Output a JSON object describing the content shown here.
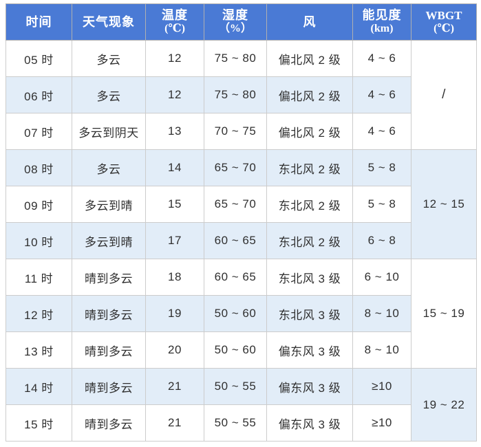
{
  "colors": {
    "header_bg": "#4a7ad5",
    "header_text": "#ffffff",
    "alt_row_bg": "#e2edf8",
    "body_text": "#303030",
    "grid_line": "#cccccc"
  },
  "table": {
    "headers": [
      {
        "zh": "时间",
        "en": ""
      },
      {
        "zh": "天气现象",
        "en": ""
      },
      {
        "zh": "温度",
        "en": "(℃)"
      },
      {
        "zh": "湿度",
        "en": "（%）"
      },
      {
        "zh": "风",
        "en": ""
      },
      {
        "zh": "能见度",
        "en": "(km)"
      },
      {
        "zh": "WBGT",
        "en": "(℃)"
      }
    ],
    "rows": [
      {
        "time": "05 时",
        "weather": "多云",
        "temp": "12",
        "humidity": "75 ~ 80",
        "wind": "偏北风 2 级",
        "visibility": "4 ~ 6"
      },
      {
        "time": "06 时",
        "weather": "多云",
        "temp": "12",
        "humidity": "75 ~ 80",
        "wind": "偏北风 2 级",
        "visibility": "4 ~ 6"
      },
      {
        "time": "07 时",
        "weather": "多云到阴天",
        "temp": "13",
        "humidity": "70 ~ 75",
        "wind": "偏北风 2 级",
        "visibility": "4 ~ 6"
      },
      {
        "time": "08 时",
        "weather": "多云",
        "temp": "14",
        "humidity": "65 ~ 70",
        "wind": "东北风 2 级",
        "visibility": "5 ~ 8"
      },
      {
        "time": "09 时",
        "weather": "多云到晴",
        "temp": "15",
        "humidity": "65 ~ 70",
        "wind": "东北风 2 级",
        "visibility": "5 ~ 8"
      },
      {
        "time": "10 时",
        "weather": "多云到晴",
        "temp": "17",
        "humidity": "60 ~ 65",
        "wind": "东北风 2 级",
        "visibility": "6 ~ 8"
      },
      {
        "time": "11 时",
        "weather": "晴到多云",
        "temp": "18",
        "humidity": "60 ~ 65",
        "wind": "东北风 3 级",
        "visibility": "6 ~ 10"
      },
      {
        "time": "12 时",
        "weather": "晴到多云",
        "temp": "19",
        "humidity": "50 ~ 60",
        "wind": "东北风 3 级",
        "visibility": "8 ~ 10"
      },
      {
        "time": "13 时",
        "weather": "晴到多云",
        "temp": "20",
        "humidity": "50 ~ 60",
        "wind": "偏东风 3 级",
        "visibility": "8 ~ 10"
      },
      {
        "time": "14 时",
        "weather": "晴到多云",
        "temp": "21",
        "humidity": "50 ~ 55",
        "wind": "偏东风 3 级",
        "visibility": "≥10"
      },
      {
        "time": "15 时",
        "weather": "晴到多云",
        "temp": "21",
        "humidity": "50 ~ 55",
        "wind": "偏东风 3 级",
        "visibility": "≥10"
      }
    ],
    "wbgt_groups": [
      {
        "value": "/",
        "row_span": 3,
        "covers": "05时-07时"
      },
      {
        "value": "12 ~ 15",
        "row_span": 3,
        "covers": "08时-10时"
      },
      {
        "value": "15 ~ 19",
        "row_span": 3,
        "covers": "11时-13时"
      },
      {
        "value": "19 ~ 22",
        "row_span": 2,
        "covers": "14时-15时"
      }
    ]
  },
  "chart_data": {
    "type": "table",
    "title": "",
    "columns": [
      "时间",
      "天气现象",
      "温度(℃)",
      "湿度（%）",
      "风",
      "能见度(km)",
      "WBGT(℃)"
    ],
    "rows": [
      [
        "05时",
        "多云",
        12,
        "75~80",
        "偏北风2级",
        "4~6",
        "/"
      ],
      [
        "06时",
        "多云",
        12,
        "75~80",
        "偏北风2级",
        "4~6",
        "/"
      ],
      [
        "07时",
        "多云到阴天",
        13,
        "70~75",
        "偏北风2级",
        "4~6",
        "/"
      ],
      [
        "08时",
        "多云",
        14,
        "65~70",
        "东北风2级",
        "5~8",
        "12~15"
      ],
      [
        "09时",
        "多云到晴",
        15,
        "65~70",
        "东北风2级",
        "5~8",
        "12~15"
      ],
      [
        "10时",
        "多云到晴",
        17,
        "60~65",
        "东北风2级",
        "6~8",
        "12~15"
      ],
      [
        "11时",
        "晴到多云",
        18,
        "60~65",
        "东北风3级",
        "6~10",
        "15~19"
      ],
      [
        "12时",
        "晴到多云",
        19,
        "50~60",
        "东北风3级",
        "8~10",
        "15~19"
      ],
      [
        "13时",
        "晴到多云",
        20,
        "50~60",
        "偏东风3级",
        "8~10",
        "15~19"
      ],
      [
        "14时",
        "晴到多云",
        21,
        "50~55",
        "偏东风3级",
        "≥10",
        "19~22"
      ],
      [
        "15时",
        "晴到多云",
        21,
        "50~55",
        "偏东风3级",
        "≥10",
        "19~22"
      ]
    ],
    "notes": "WBGT column uses merged cells: rows 05-07 = '/', 08-10 = '12~15', 11-13 = '15~19', 14-15 = '19~22'. Body rows alternate white / light blue."
  }
}
